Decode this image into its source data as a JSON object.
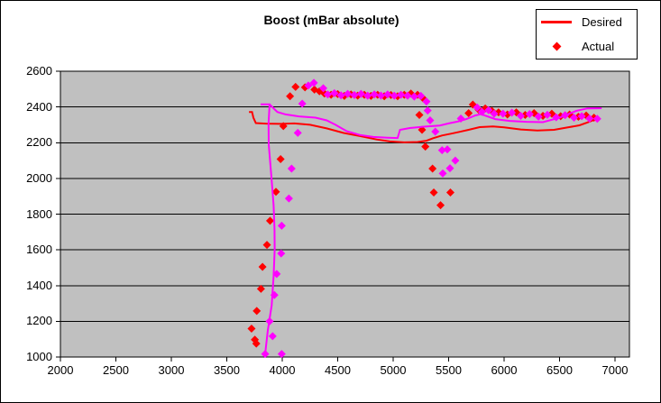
{
  "chart_data": {
    "type": "line+scatter",
    "title": "Boost (mBar absolute)",
    "xlabel": "",
    "ylabel": "",
    "xlim": [
      2000,
      7130
    ],
    "ylim": [
      1000,
      2600
    ],
    "x_ticks": [
      2000,
      2500,
      3000,
      3500,
      4000,
      4500,
      5000,
      5500,
      6000,
      6500,
      7000
    ],
    "y_ticks": [
      1000,
      1200,
      1400,
      1600,
      1800,
      2000,
      2200,
      2400,
      2600
    ],
    "grid": "horizontal",
    "plot_bg": "#C0C0C0",
    "grid_color": "#000000",
    "axis_color": "#000000",
    "legend": {
      "position": "top-right",
      "items": [
        {
          "label": "Desired",
          "marker": "line",
          "color": "#FF0000"
        },
        {
          "label": "Actual",
          "marker": "diamond",
          "color": "#FF0000"
        }
      ]
    },
    "series": [
      {
        "name": "desired-line",
        "legend_label": "Desired",
        "type": "line",
        "color": "#FF0000",
        "points": [
          [
            3700,
            2372
          ],
          [
            3728,
            2372
          ],
          [
            3740,
            2340
          ],
          [
            3762,
            2310
          ],
          [
            3850,
            2307
          ],
          [
            3980,
            2305
          ],
          [
            4110,
            2308
          ],
          [
            4250,
            2300
          ],
          [
            4400,
            2280
          ],
          [
            4550,
            2255
          ],
          [
            4700,
            2237
          ],
          [
            4850,
            2218
          ],
          [
            4970,
            2207
          ],
          [
            5100,
            2202
          ],
          [
            5220,
            2204
          ],
          [
            5300,
            2211
          ],
          [
            5360,
            2225
          ],
          [
            5440,
            2240
          ],
          [
            5520,
            2250
          ],
          [
            5600,
            2261
          ],
          [
            5680,
            2272
          ],
          [
            5780,
            2287
          ],
          [
            5900,
            2291
          ],
          [
            6000,
            2286
          ],
          [
            6150,
            2274
          ],
          [
            6300,
            2268
          ],
          [
            6450,
            2272
          ],
          [
            6570,
            2285
          ],
          [
            6680,
            2297
          ],
          [
            6760,
            2315
          ],
          [
            6820,
            2330
          ]
        ]
      },
      {
        "name": "actual-points",
        "legend_label": "Actual",
        "type": "scatter-diamond",
        "color": "#FF0000",
        "points": [
          [
            3723,
            1159
          ],
          [
            3753,
            1097
          ],
          [
            3766,
            1075
          ],
          [
            3770,
            1258
          ],
          [
            3808,
            1382
          ],
          [
            3822,
            1505
          ],
          [
            3862,
            1628
          ],
          [
            3890,
            1763
          ],
          [
            3943,
            1925
          ],
          [
            3985,
            2108
          ],
          [
            4010,
            2293
          ],
          [
            4070,
            2460
          ],
          [
            4120,
            2512
          ],
          [
            4205,
            2510
          ],
          [
            4290,
            2497
          ],
          [
            4335,
            2488
          ],
          [
            4380,
            2475
          ],
          [
            4440,
            2468
          ],
          [
            4500,
            2472
          ],
          [
            4560,
            2462
          ],
          [
            4620,
            2470
          ],
          [
            4680,
            2463
          ],
          [
            4740,
            2468
          ],
          [
            4800,
            2462
          ],
          [
            4860,
            2468
          ],
          [
            4920,
            2460
          ],
          [
            4980,
            2467
          ],
          [
            5040,
            2460
          ],
          [
            5100,
            2468
          ],
          [
            5160,
            2475
          ],
          [
            5220,
            2468
          ],
          [
            5270,
            2448
          ],
          [
            5236,
            2355
          ],
          [
            5260,
            2272
          ],
          [
            5290,
            2178
          ],
          [
            5355,
            2055
          ],
          [
            5366,
            1921
          ],
          [
            5427,
            1850
          ],
          [
            5516,
            1921
          ],
          [
            5680,
            2365
          ],
          [
            5718,
            2413
          ],
          [
            5770,
            2385
          ],
          [
            5830,
            2392
          ],
          [
            5890,
            2378
          ],
          [
            5950,
            2370
          ],
          [
            6030,
            2358
          ],
          [
            6110,
            2370
          ],
          [
            6190,
            2355
          ],
          [
            6270,
            2365
          ],
          [
            6350,
            2350
          ],
          [
            6430,
            2362
          ],
          [
            6510,
            2348
          ],
          [
            6590,
            2358
          ],
          [
            6670,
            2345
          ],
          [
            6740,
            2352
          ],
          [
            6810,
            2340
          ]
        ]
      },
      {
        "name": "unlabeled-magenta-line",
        "legend_label": null,
        "type": "line",
        "color": "#FF00FF",
        "points": [
          [
            3846,
            1020
          ],
          [
            3870,
            1150
          ],
          [
            3905,
            1290
          ],
          [
            3922,
            1450
          ],
          [
            3932,
            1600
          ],
          [
            3930,
            1720
          ],
          [
            3922,
            1850
          ],
          [
            3903,
            2000
          ],
          [
            3878,
            2190
          ],
          [
            3876,
            2310
          ],
          [
            3886,
            2415
          ],
          [
            3805,
            2415
          ],
          [
            3886,
            2415
          ],
          [
            3912,
            2398
          ],
          [
            3956,
            2372
          ],
          [
            4030,
            2358
          ],
          [
            4150,
            2347
          ],
          [
            4300,
            2340
          ],
          [
            4400,
            2325
          ],
          [
            4480,
            2300
          ],
          [
            4580,
            2265
          ],
          [
            4700,
            2243
          ],
          [
            4820,
            2232
          ],
          [
            4950,
            2228
          ],
          [
            5040,
            2226
          ],
          [
            5062,
            2272
          ],
          [
            5150,
            2282
          ],
          [
            5290,
            2290
          ],
          [
            5420,
            2296
          ],
          [
            5500,
            2308
          ],
          [
            5580,
            2318
          ],
          [
            5660,
            2332
          ],
          [
            5740,
            2352
          ],
          [
            5790,
            2360
          ],
          [
            5860,
            2345
          ],
          [
            5920,
            2332
          ],
          [
            6050,
            2322
          ],
          [
            6200,
            2317
          ],
          [
            6350,
            2315
          ],
          [
            6500,
            2340
          ],
          [
            6650,
            2378
          ],
          [
            6750,
            2392
          ],
          [
            6880,
            2393
          ]
        ]
      },
      {
        "name": "unlabeled-magenta-points",
        "legend_label": null,
        "type": "scatter-diamond",
        "color": "#FF00FF",
        "points": [
          [
            3846,
            1017
          ],
          [
            3995,
            1017
          ],
          [
            3886,
            1200
          ],
          [
            3913,
            1117
          ],
          [
            3929,
            1347
          ],
          [
            3950,
            1465
          ],
          [
            3990,
            1580
          ],
          [
            3995,
            1735
          ],
          [
            4060,
            1888
          ],
          [
            4084,
            2055
          ],
          [
            4140,
            2255
          ],
          [
            4180,
            2418
          ],
          [
            4235,
            2520
          ],
          [
            4285,
            2535
          ],
          [
            4370,
            2505
          ],
          [
            4410,
            2470
          ],
          [
            4470,
            2477
          ],
          [
            4530,
            2465
          ],
          [
            4590,
            2473
          ],
          [
            4650,
            2467
          ],
          [
            4710,
            2473
          ],
          [
            4770,
            2463
          ],
          [
            4830,
            2470
          ],
          [
            4890,
            2464
          ],
          [
            4950,
            2470
          ],
          [
            5010,
            2463
          ],
          [
            5070,
            2468
          ],
          [
            5130,
            2463
          ],
          [
            5190,
            2458
          ],
          [
            5250,
            2462
          ],
          [
            5300,
            2430
          ],
          [
            5311,
            2380
          ],
          [
            5333,
            2325
          ],
          [
            5380,
            2262
          ],
          [
            5441,
            2158
          ],
          [
            5447,
            2028
          ],
          [
            5488,
            2162
          ],
          [
            5512,
            2057
          ],
          [
            5560,
            2100
          ],
          [
            5610,
            2335
          ],
          [
            5757,
            2397
          ],
          [
            5800,
            2372
          ],
          [
            5860,
            2382
          ],
          [
            5910,
            2362
          ],
          [
            5990,
            2362
          ],
          [
            6070,
            2368
          ],
          [
            6150,
            2350
          ],
          [
            6230,
            2360
          ],
          [
            6310,
            2346
          ],
          [
            6390,
            2356
          ],
          [
            6470,
            2342
          ],
          [
            6550,
            2354
          ],
          [
            6630,
            2340
          ],
          [
            6700,
            2348
          ],
          [
            6770,
            2335
          ],
          [
            6840,
            2334
          ]
        ]
      }
    ]
  }
}
